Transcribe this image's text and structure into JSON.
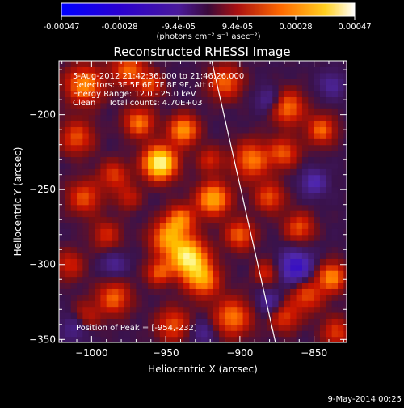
{
  "colorbar": {
    "ticks": [
      "-0.00047",
      "-0.00028",
      "-9.4e-05",
      "9.4e-05",
      "0.00028",
      "0.00047"
    ],
    "units": "(photons cm⁻² s⁻¹ asec⁻²)"
  },
  "chart_data": {
    "type": "heatmap",
    "title": "Reconstructed RHESSI Image",
    "xlabel": "Heliocentric X (arcsec)",
    "ylabel": "Heliocentric Y (arcsec)",
    "xlim": [
      -1022,
      -828
    ],
    "ylim": [
      -352,
      -164
    ],
    "xticks": [
      -1000,
      -950,
      -900,
      -850
    ],
    "yticks": [
      -200,
      -250,
      -300,
      -350
    ],
    "xtick_labels": [
      "−1000",
      "−950",
      "−900",
      "−850"
    ],
    "ytick_labels": [
      "−200",
      "−250",
      "−300",
      "−350"
    ],
    "value_range": [
      -0.00047,
      0.00047
    ],
    "peak_position": [
      -954,
      -232
    ],
    "limb_line": [
      [
        -919,
        -164
      ],
      [
        -876,
        -352
      ]
    ],
    "annotations": [
      "5-Aug-2012 21:42:36.000 to 21:46:26.000",
      "Detectors: 3F 5F 6F 7F 8F 9F, Att 0",
      "Energy Range: 12.0 - 25.0 keV",
      "Clean     Total counts: 4.70E+03"
    ],
    "peak_label": "Position of Peak = [-954,-232]",
    "blobs": [
      {
        "x": -954,
        "y": -232,
        "r": 8,
        "v": 1.0
      },
      {
        "x": -938,
        "y": -210,
        "r": 7,
        "v": 0.65
      },
      {
        "x": -968,
        "y": -205,
        "r": 7,
        "v": 0.55
      },
      {
        "x": -1005,
        "y": -180,
        "r": 9,
        "v": 0.6
      },
      {
        "x": -1010,
        "y": -215,
        "r": 8,
        "v": 0.45
      },
      {
        "x": -975,
        "y": -170,
        "r": 8,
        "v": 0.5
      },
      {
        "x": -985,
        "y": -240,
        "r": 7,
        "v": 0.4
      },
      {
        "x": -1005,
        "y": -255,
        "r": 8,
        "v": 0.45
      },
      {
        "x": -990,
        "y": -280,
        "r": 7,
        "v": 0.35
      },
      {
        "x": -950,
        "y": -282,
        "r": 8,
        "v": 0.55
      },
      {
        "x": -935,
        "y": -295,
        "r": 9,
        "v": 0.9
      },
      {
        "x": -940,
        "y": -270,
        "r": 7,
        "v": 0.55
      },
      {
        "x": -918,
        "y": -256,
        "r": 8,
        "v": 0.7
      },
      {
        "x": -925,
        "y": -310,
        "r": 8,
        "v": 0.6
      },
      {
        "x": -905,
        "y": -335,
        "r": 9,
        "v": 0.55
      },
      {
        "x": -945,
        "y": -340,
        "r": 8,
        "v": 0.45
      },
      {
        "x": -985,
        "y": -322,
        "r": 8,
        "v": 0.5
      },
      {
        "x": -1005,
        "y": -335,
        "r": 7,
        "v": 0.4
      },
      {
        "x": -900,
        "y": -280,
        "r": 7,
        "v": 0.5
      },
      {
        "x": -892,
        "y": -230,
        "r": 9,
        "v": 0.55
      },
      {
        "x": -910,
        "y": -178,
        "r": 8,
        "v": 0.5
      },
      {
        "x": -868,
        "y": -195,
        "r": 8,
        "v": 0.55
      },
      {
        "x": -870,
        "y": -225,
        "r": 7,
        "v": 0.45
      },
      {
        "x": -845,
        "y": -210,
        "r": 7,
        "v": 0.5
      },
      {
        "x": -880,
        "y": -255,
        "r": 7,
        "v": 0.45
      },
      {
        "x": -860,
        "y": -275,
        "r": 7,
        "v": 0.45
      },
      {
        "x": -855,
        "y": -320,
        "r": 8,
        "v": 0.45
      },
      {
        "x": -838,
        "y": -308,
        "r": 7,
        "v": 0.6
      },
      {
        "x": -835,
        "y": -345,
        "r": 7,
        "v": 0.4
      },
      {
        "x": -870,
        "y": -335,
        "r": 7,
        "v": 0.4
      },
      {
        "x": -1015,
        "y": -300,
        "r": 7,
        "v": 0.35
      },
      {
        "x": -960,
        "y": -180,
        "r": 6,
        "v": 0.4
      },
      {
        "x": -920,
        "y": -230,
        "r": 6,
        "v": 0.35
      },
      {
        "x": -955,
        "y": -305,
        "r": 6,
        "v": 0.45
      },
      {
        "x": -882,
        "y": -305,
        "r": 6,
        "v": 0.35
      },
      {
        "x": -975,
        "y": -255,
        "r": 6,
        "v": 0.3
      },
      {
        "x": -850,
        "y": -245,
        "r": 6,
        "v": -0.35
      },
      {
        "x": -862,
        "y": -302,
        "r": 8,
        "v": -0.55
      },
      {
        "x": -1010,
        "y": -340,
        "r": 7,
        "v": -0.35
      },
      {
        "x": -985,
        "y": -300,
        "r": 6,
        "v": -0.25
      },
      {
        "x": -880,
        "y": -190,
        "r": 6,
        "v": -0.3
      },
      {
        "x": -880,
        "y": -325,
        "r": 6,
        "v": -0.3
      },
      {
        "x": -925,
        "y": -345,
        "r": 6,
        "v": -0.25
      },
      {
        "x": -838,
        "y": -180,
        "r": 6,
        "v": -0.25
      }
    ]
  },
  "footer": {
    "timestamp": "9-May-2014 00:25"
  }
}
